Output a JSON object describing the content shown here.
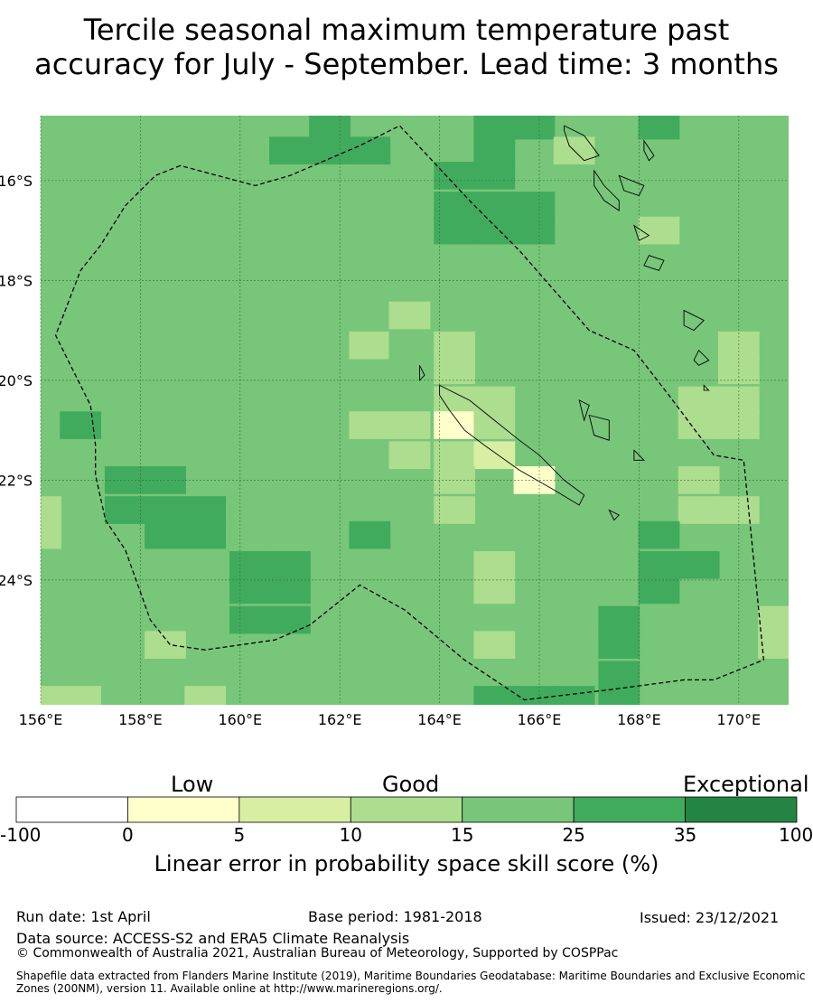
{
  "title": "Tercile seasonal maximum temperature past\naccuracy for July - September. Lead time: 3 months",
  "map": {
    "lon_range": [
      156,
      171
    ],
    "lat_range": [
      -26.5,
      -14.7
    ],
    "lon_ticks": [
      "156°E",
      "158°E",
      "160°E",
      "162°E",
      "164°E",
      "166°E",
      "168°E",
      "170°E"
    ],
    "lat_ticks": [
      "16°S",
      "18°S",
      "20°S",
      "22°S",
      "24°S"
    ],
    "gridlines": true,
    "default_class": 4,
    "cells": [
      {
        "lon": 161.8,
        "lat": -14.9,
        "class": 5
      },
      {
        "lon": 161.0,
        "lat": -15.4,
        "class": 5
      },
      {
        "lon": 161.8,
        "lat": -15.4,
        "class": 5
      },
      {
        "lon": 162.6,
        "lat": -15.4,
        "class": 5
      },
      {
        "lon": 164.3,
        "lat": -15.9,
        "class": 5
      },
      {
        "lon": 165.1,
        "lat": -14.9,
        "class": 5
      },
      {
        "lon": 165.9,
        "lat": -14.9,
        "class": 5
      },
      {
        "lon": 165.1,
        "lat": -15.4,
        "class": 5
      },
      {
        "lon": 165.1,
        "lat": -15.9,
        "class": 5
      },
      {
        "lon": 164.3,
        "lat": -16.5,
        "class": 5
      },
      {
        "lon": 165.1,
        "lat": -16.5,
        "class": 5
      },
      {
        "lon": 165.9,
        "lat": -16.5,
        "class": 5
      },
      {
        "lon": 164.3,
        "lat": -17.0,
        "class": 5
      },
      {
        "lon": 165.1,
        "lat": -17.0,
        "class": 5
      },
      {
        "lon": 165.9,
        "lat": -17.0,
        "class": 5
      },
      {
        "lon": 168.4,
        "lat": -14.9,
        "class": 5
      },
      {
        "lon": 166.7,
        "lat": -15.4,
        "class": 3
      },
      {
        "lon": 168.4,
        "lat": -17.0,
        "class": 3
      },
      {
        "lon": 163.4,
        "lat": -18.7,
        "class": 3
      },
      {
        "lon": 162.6,
        "lat": -19.3,
        "class": 3
      },
      {
        "lon": 163.4,
        "lat": -19.3,
        "class": 4
      },
      {
        "lon": 164.3,
        "lat": -19.3,
        "class": 3
      },
      {
        "lon": 164.3,
        "lat": -19.8,
        "class": 3
      },
      {
        "lon": 164.3,
        "lat": -20.4,
        "class": 3
      },
      {
        "lon": 165.1,
        "lat": -20.4,
        "class": 3
      },
      {
        "lon": 170.0,
        "lat": -19.3,
        "class": 3
      },
      {
        "lon": 170.0,
        "lat": -19.8,
        "class": 3
      },
      {
        "lon": 169.2,
        "lat": -20.4,
        "class": 3
      },
      {
        "lon": 170.0,
        "lat": -20.4,
        "class": 3
      },
      {
        "lon": 169.2,
        "lat": -20.9,
        "class": 3
      },
      {
        "lon": 170.0,
        "lat": -20.9,
        "class": 3
      },
      {
        "lon": 156.8,
        "lat": -20.9,
        "class": 5
      },
      {
        "lon": 162.6,
        "lat": -20.9,
        "class": 3
      },
      {
        "lon": 163.4,
        "lat": -20.9,
        "class": 3
      },
      {
        "lon": 164.3,
        "lat": -20.9,
        "class": 1
      },
      {
        "lon": 165.1,
        "lat": -20.9,
        "class": 3
      },
      {
        "lon": 163.4,
        "lat": -21.5,
        "class": 3
      },
      {
        "lon": 164.3,
        "lat": -21.5,
        "class": 3
      },
      {
        "lon": 165.1,
        "lat": -21.5,
        "class": 2
      },
      {
        "lon": 164.3,
        "lat": -22.0,
        "class": 3
      },
      {
        "lon": 165.9,
        "lat": -22.0,
        "class": 1
      },
      {
        "lon": 164.3,
        "lat": -22.6,
        "class": 3
      },
      {
        "lon": 169.2,
        "lat": -22.0,
        "class": 3
      },
      {
        "lon": 169.2,
        "lat": -22.6,
        "class": 3
      },
      {
        "lon": 170.0,
        "lat": -22.6,
        "class": 3
      },
      {
        "lon": 156.0,
        "lat": -22.6,
        "class": 3
      },
      {
        "lon": 156.0,
        "lat": -23.1,
        "class": 3
      },
      {
        "lon": 157.7,
        "lat": -22.0,
        "class": 5
      },
      {
        "lon": 158.5,
        "lat": -22.0,
        "class": 5
      },
      {
        "lon": 157.7,
        "lat": -22.6,
        "class": 5
      },
      {
        "lon": 158.5,
        "lat": -22.6,
        "class": 5
      },
      {
        "lon": 159.3,
        "lat": -22.6,
        "class": 5
      },
      {
        "lon": 158.5,
        "lat": -23.1,
        "class": 5
      },
      {
        "lon": 159.3,
        "lat": -23.1,
        "class": 5
      },
      {
        "lon": 162.6,
        "lat": -23.1,
        "class": 5
      },
      {
        "lon": 168.4,
        "lat": -23.1,
        "class": 5
      },
      {
        "lon": 168.4,
        "lat": -23.7,
        "class": 5
      },
      {
        "lon": 169.2,
        "lat": -23.7,
        "class": 5
      },
      {
        "lon": 168.4,
        "lat": -24.2,
        "class": 5
      },
      {
        "lon": 165.1,
        "lat": -23.7,
        "class": 3
      },
      {
        "lon": 165.1,
        "lat": -24.2,
        "class": 3
      },
      {
        "lon": 160.2,
        "lat": -23.7,
        "class": 5
      },
      {
        "lon": 161.0,
        "lat": -23.7,
        "class": 5
      },
      {
        "lon": 160.2,
        "lat": -24.2,
        "class": 5
      },
      {
        "lon": 161.0,
        "lat": -24.2,
        "class": 5
      },
      {
        "lon": 160.2,
        "lat": -24.8,
        "class": 5
      },
      {
        "lon": 161.0,
        "lat": -24.8,
        "class": 5
      },
      {
        "lon": 167.6,
        "lat": -24.8,
        "class": 5
      },
      {
        "lon": 167.6,
        "lat": -25.3,
        "class": 5
      },
      {
        "lon": 167.6,
        "lat": -25.9,
        "class": 5
      },
      {
        "lon": 167.6,
        "lat": -26.4,
        "class": 5
      },
      {
        "lon": 170.8,
        "lat": -24.8,
        "class": 3
      },
      {
        "lon": 170.8,
        "lat": -25.3,
        "class": 3
      },
      {
        "lon": 158.5,
        "lat": -25.3,
        "class": 3
      },
      {
        "lon": 165.1,
        "lat": -25.3,
        "class": 3
      },
      {
        "lon": 156.0,
        "lat": -26.4,
        "class": 3
      },
      {
        "lon": 156.8,
        "lat": -26.4,
        "class": 3
      },
      {
        "lon": 159.3,
        "lat": -26.4,
        "class": 3
      },
      {
        "lon": 165.1,
        "lat": -26.4,
        "class": 5
      },
      {
        "lon": 165.9,
        "lat": -26.4,
        "class": 5
      },
      {
        "lon": 166.7,
        "lat": -26.4,
        "class": 5
      }
    ],
    "eez_boundary": [
      [
        158.8,
        -15.7
      ],
      [
        158.3,
        -15.9
      ],
      [
        157.7,
        -16.5
      ],
      [
        157.2,
        -17.3
      ],
      [
        156.8,
        -17.8
      ],
      [
        156.3,
        -19.1
      ],
      [
        156.6,
        -19.7
      ],
      [
        157.0,
        -20.5
      ],
      [
        157.1,
        -21.3
      ],
      [
        157.1,
        -21.9
      ],
      [
        157.3,
        -22.8
      ],
      [
        157.7,
        -23.4
      ],
      [
        158.2,
        -24.8
      ],
      [
        158.6,
        -25.3
      ],
      [
        159.3,
        -25.4
      ],
      [
        160.7,
        -25.2
      ],
      [
        161.4,
        -24.9
      ],
      [
        162.4,
        -24.1
      ],
      [
        163.3,
        -24.6
      ],
      [
        164.5,
        -25.6
      ],
      [
        165.7,
        -26.4
      ],
      [
        167.4,
        -26.2
      ],
      [
        168.9,
        -26.0
      ],
      [
        169.5,
        -26.0
      ],
      [
        170.5,
        -25.6
      ],
      [
        170.1,
        -21.6
      ],
      [
        169.5,
        -21.5
      ],
      [
        168.6,
        -20.3
      ],
      [
        167.9,
        -19.4
      ],
      [
        167.0,
        -19.0
      ],
      [
        165.6,
        -17.4
      ],
      [
        164.6,
        -16.4
      ],
      [
        163.2,
        -14.9
      ],
      [
        162.4,
        -15.3
      ],
      [
        161.0,
        -15.9
      ],
      [
        160.3,
        -16.1
      ],
      [
        158.8,
        -15.7
      ]
    ],
    "islands": [
      [
        [
          166.5,
          -14.9
        ],
        [
          166.9,
          -15.1
        ],
        [
          167.2,
          -15.5
        ],
        [
          166.9,
          -15.6
        ],
        [
          166.6,
          -15.3
        ],
        [
          166.5,
          -15.0
        ]
      ],
      [
        [
          167.1,
          -15.8
        ],
        [
          167.3,
          -16.1
        ],
        [
          167.6,
          -16.4
        ],
        [
          167.6,
          -16.6
        ],
        [
          167.3,
          -16.4
        ],
        [
          167.1,
          -16.1
        ]
      ],
      [
        [
          167.6,
          -15.9
        ],
        [
          168.1,
          -16.1
        ],
        [
          168.0,
          -16.3
        ],
        [
          167.7,
          -16.2
        ]
      ],
      [
        [
          168.1,
          -15.2
        ],
        [
          168.3,
          -15.5
        ],
        [
          168.2,
          -15.6
        ],
        [
          168.1,
          -15.4
        ]
      ],
      [
        [
          168.2,
          -17.5
        ],
        [
          168.5,
          -17.6
        ],
        [
          168.4,
          -17.8
        ],
        [
          168.1,
          -17.7
        ]
      ],
      [
        [
          167.9,
          -16.9
        ],
        [
          168.2,
          -17.1
        ],
        [
          168.0,
          -17.2
        ]
      ],
      [
        [
          168.9,
          -18.6
        ],
        [
          169.3,
          -18.8
        ],
        [
          169.1,
          -19.0
        ],
        [
          168.9,
          -18.9
        ]
      ],
      [
        [
          169.2,
          -19.4
        ],
        [
          169.4,
          -19.6
        ],
        [
          169.2,
          -19.7
        ],
        [
          169.1,
          -19.6
        ]
      ],
      [
        [
          166.8,
          -20.4
        ],
        [
          167.0,
          -20.5
        ],
        [
          166.9,
          -20.8
        ]
      ],
      [
        [
          167.0,
          -20.7
        ],
        [
          167.4,
          -20.8
        ],
        [
          167.4,
          -21.2
        ],
        [
          167.1,
          -21.1
        ]
      ],
      [
        [
          167.9,
          -21.4
        ],
        [
          168.1,
          -21.6
        ],
        [
          167.9,
          -21.6
        ]
      ],
      [
        [
          164.0,
          -20.1
        ],
        [
          164.6,
          -20.4
        ],
        [
          165.1,
          -20.8
        ],
        [
          165.6,
          -21.2
        ],
        [
          166.0,
          -21.5
        ],
        [
          166.5,
          -22.0
        ],
        [
          166.9,
          -22.3
        ],
        [
          166.8,
          -22.5
        ],
        [
          166.3,
          -22.2
        ],
        [
          165.6,
          -21.8
        ],
        [
          164.9,
          -21.3
        ],
        [
          164.5,
          -21.0
        ],
        [
          164.2,
          -20.6
        ],
        [
          164.0,
          -20.3
        ]
      ],
      [
        [
          163.6,
          -19.7
        ],
        [
          163.7,
          -19.9
        ],
        [
          163.6,
          -20.0
        ]
      ],
      [
        [
          167.4,
          -22.6
        ],
        [
          167.6,
          -22.7
        ],
        [
          167.5,
          -22.8
        ]
      ],
      [
        [
          169.3,
          -20.1
        ],
        [
          169.4,
          -20.2
        ],
        [
          169.3,
          -20.2
        ]
      ]
    ]
  },
  "legend": {
    "categories": [
      "Low",
      "Good",
      "Exceptional"
    ],
    "ticks": [
      "-100",
      "0",
      "5",
      "10",
      "15",
      "25",
      "35",
      "100"
    ],
    "colors": [
      "#ffffff",
      "#ffffcc",
      "#d8efa3",
      "#addd8e",
      "#78c679",
      "#41ab5d",
      "#238443"
    ],
    "label": "Linear error in probability space skill score (%)"
  },
  "footer": {
    "run_date": "Run date: 1st April",
    "base_period": "Base period: 1981-2018",
    "issued": "Issued: 23/12/2021",
    "data_source": "Data source: ACCESS-S2 and ERA5 Climate Reanalysis",
    "copyright": "© Commonwealth of Australia 2021, Australian Bureau of Meteorology, Supported by COSPPac",
    "shapefile": "Shapefile data extracted from Flanders Marine Institute (2019), Maritime Boundaries Geodatabase: Maritime Boundaries and Exclusive Economic Zones (200NM), version 11. Available online at http://www.marineregions.org/."
  }
}
